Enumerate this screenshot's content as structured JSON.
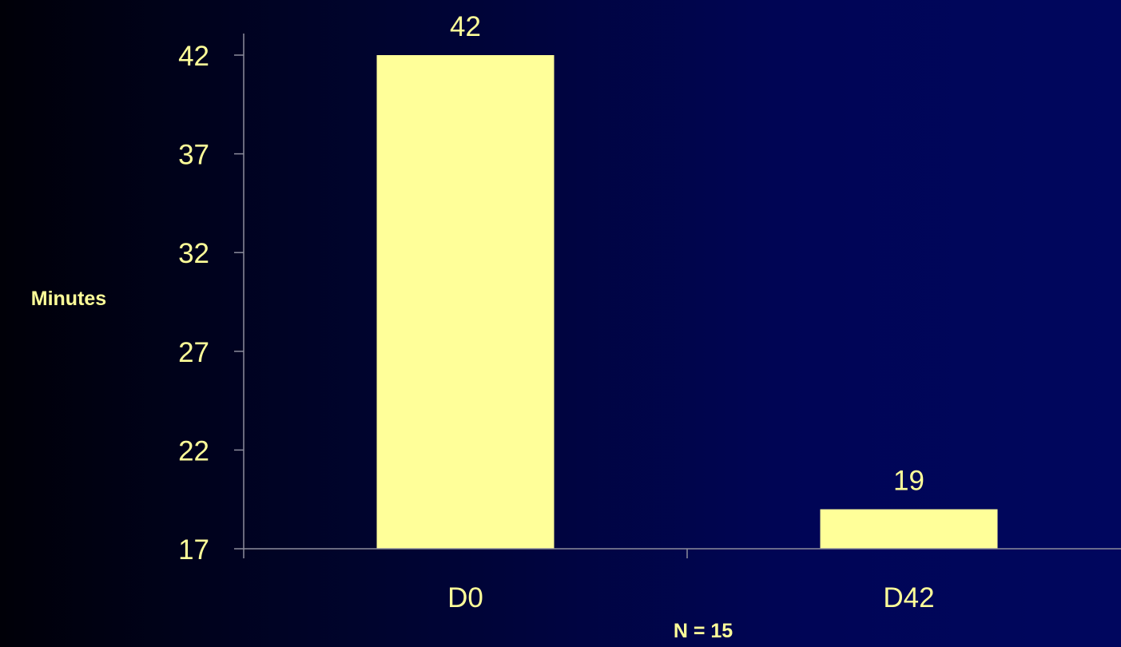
{
  "chart_data": {
    "type": "bar",
    "categories": [
      "D0",
      "D42"
    ],
    "values": [
      42,
      19
    ],
    "data_labels": [
      "42",
      "19"
    ],
    "title": "",
    "xlabel": "N = 15",
    "ylabel": "Minutes",
    "yticks": [
      17,
      22,
      27,
      32,
      37,
      42
    ],
    "ytick_labels": [
      "17",
      "22",
      "27",
      "32",
      "37",
      "42"
    ],
    "ylim": [
      17,
      42
    ],
    "grid": false,
    "legend": "none",
    "colors": {
      "bar": "#ffff99",
      "text": "#ffff99",
      "axis": "#8c8c9c"
    }
  }
}
